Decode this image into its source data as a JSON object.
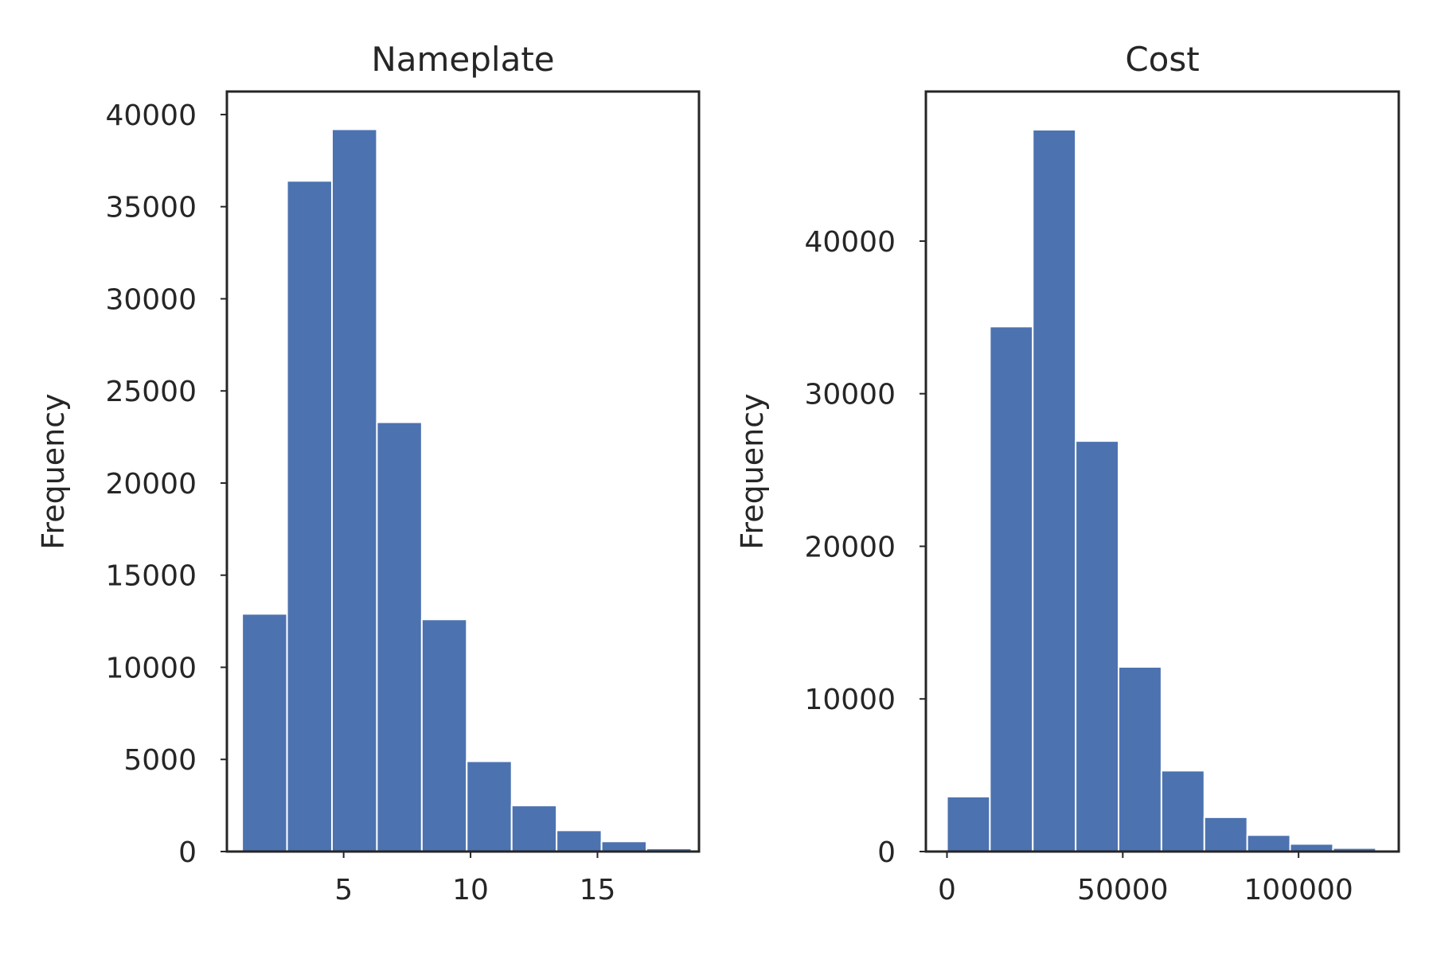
{
  "colors": {
    "bar": "#4c72b0",
    "axis": "#262626",
    "background": "#ffffff"
  },
  "chart_data": [
    {
      "type": "bar",
      "title": "Nameplate",
      "xlabel": "",
      "ylabel": "Frequency",
      "xlim": [
        0.4,
        19.0
      ],
      "ylim": [
        0,
        41250
      ],
      "xticks": [
        5,
        10,
        15
      ],
      "yticks": [
        0,
        5000,
        10000,
        15000,
        20000,
        25000,
        30000,
        35000,
        40000
      ],
      "bin_edges": [
        1.0,
        2.77,
        4.54,
        6.31,
        8.08,
        9.85,
        11.62,
        13.39,
        15.16,
        16.93,
        18.7
      ],
      "values": [
        12900,
        36400,
        39200,
        23300,
        12600,
        4900,
        2500,
        1150,
        550,
        170
      ],
      "grid": false,
      "legend": "none"
    },
    {
      "type": "bar",
      "title": "Cost",
      "xlabel": "",
      "ylabel": "Frequency",
      "xlim": [
        -6000,
        128500
      ],
      "ylim": [
        0,
        49800
      ],
      "xticks": [
        0,
        50000,
        100000
      ],
      "yticks": [
        0,
        10000,
        20000,
        30000,
        40000
      ],
      "bin_edges": [
        0,
        12200,
        24400,
        36600,
        48800,
        61000,
        73200,
        85400,
        97600,
        109800,
        122000
      ],
      "values": [
        3600,
        34400,
        47300,
        26900,
        12100,
        5300,
        2250,
        1080,
        500,
        230
      ],
      "grid": false,
      "legend": "none"
    }
  ]
}
